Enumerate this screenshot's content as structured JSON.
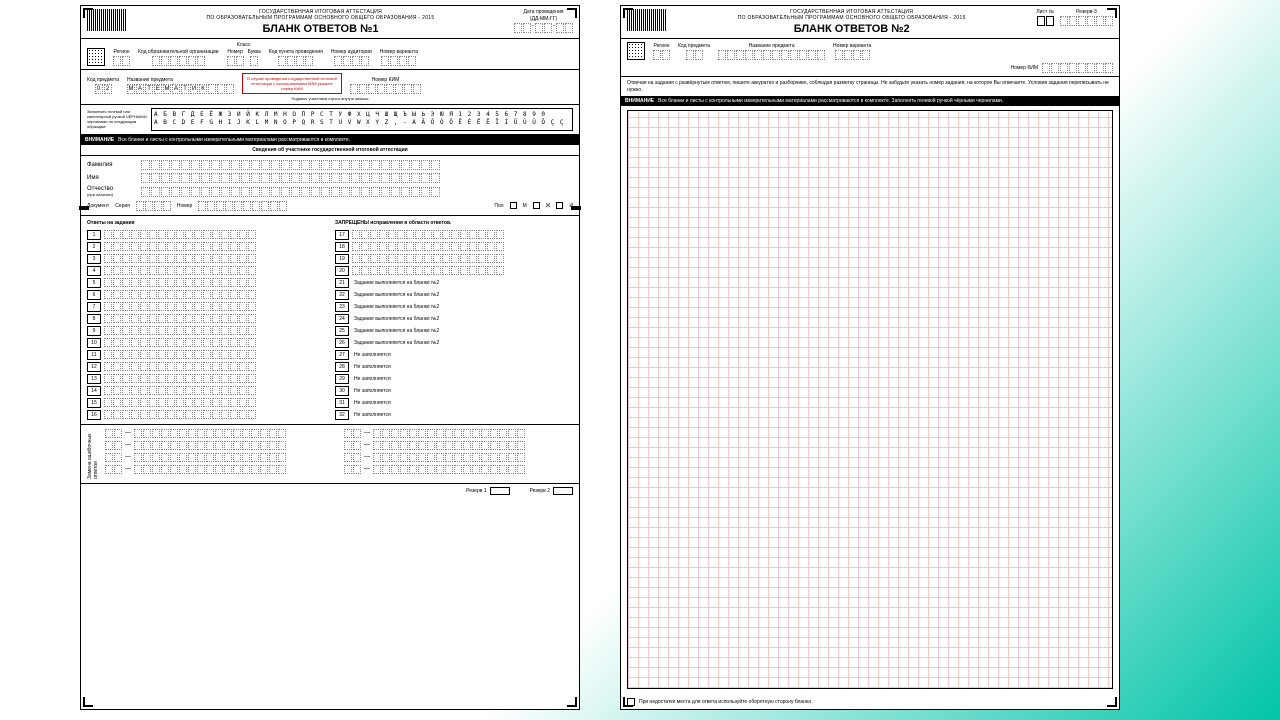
{
  "background": {
    "gradient_from": "#ffffff",
    "gradient_to": "#00c4a7"
  },
  "form1": {
    "header_line1": "ГОСУДАРСТВЕННАЯ ИТОГОВАЯ АТТЕСТАЦИЯ",
    "header_line2": "ПО ОБРАЗОВАТЕЛЬНЫМ ПРОГРАММАМ ОСНОВНОГО ОБЩЕГО ОБРАЗОВАНИЯ - 2015",
    "title": "БЛАНК ОТВЕТОВ №1",
    "date_label": "Дата проведения",
    "date_hint": "(ДД-ММ-ГГ)",
    "row2": {
      "region": "Регион",
      "org_code": "Код образовательной организации",
      "class": "Класс",
      "class_num": "Номер",
      "class_let": "Буква",
      "point_code": "Код пункта проведения",
      "aud": "Номер аудитории",
      "variant": "Номер варианта"
    },
    "row3": {
      "subj_code_label": "Код предмета",
      "subj_code": [
        "0",
        "2"
      ],
      "subj_name_label": "Название предмета",
      "subj_name": [
        "М",
        "А",
        "Т",
        "Е",
        "М",
        "А",
        "Т",
        "И",
        "К"
      ],
      "red_note": "В случае проведения государственной итоговой аттестации с использованием КИМ укажите номер КИМ",
      "sign_label": "Подпись участника строго внутри окошка",
      "kim_label": "Номер КИМ"
    },
    "alpha_label1": "Заполнять гелевой или капиллярной ручкой ЧЁРНЫМИ чернилами по следующим образцам:",
    "alpha_row1": "А Б В Г Д Е Ё Ж З И Й К Л М Н О П Р С Т У Ф Х Ц Ч Ш Щ Ъ Ы Ь Э Ю Я 1 2 3 4 5 6 7 8 9 0",
    "alpha_row2": "A B C D E F G H I J K L M N O P Q R S T U V W X Y Z , - А Ā Ö Ó Ő Ē É Ё Ĕ Ī Í Ū Ú Ü Ő Ç Ҫ",
    "warn_label": "ВНИМАНИЕ",
    "warn_text": "Все бланки и листы с контрольными измерительными материалами рассматриваются в комплекте.",
    "participant_title": "Сведения об участнике государственной итоговой аттестации",
    "name_labels": {
      "surname": "Фамилия",
      "name": "Имя",
      "patronymic": "Отчество",
      "patronymic_hint": "(при наличии)",
      "document": "Документ",
      "series": "Серия",
      "number": "Номер",
      "pol": "Пол",
      "m": "М",
      "f": "Ж",
      "i": "И"
    },
    "answers_label": "Ответы на задания",
    "forbidden_label": "ЗАПРЕЩЕНЫ исправления в области ответов.",
    "answer_boxes_per_row": 17,
    "left_rows": [
      1,
      2,
      3,
      4,
      5,
      6,
      7,
      8,
      9,
      10,
      11,
      12,
      13,
      14,
      15,
      16
    ],
    "right_rows": [
      {
        "n": 17,
        "note": ""
      },
      {
        "n": 18,
        "note": ""
      },
      {
        "n": 19,
        "note": ""
      },
      {
        "n": 20,
        "note": ""
      },
      {
        "n": 21,
        "note": "Задание выполняется на бланке №2"
      },
      {
        "n": 22,
        "note": "Задание выполняется на бланке №2"
      },
      {
        "n": 23,
        "note": "Задание выполняется на бланке №2"
      },
      {
        "n": 24,
        "note": "Задание выполняется на бланке №2"
      },
      {
        "n": 25,
        "note": "Задание выполняется на бланке №2"
      },
      {
        "n": 26,
        "note": "Задание выполняется на бланке №2"
      },
      {
        "n": 27,
        "note": "Не заполняется"
      },
      {
        "n": 28,
        "note": "Не заполняется"
      },
      {
        "n": 29,
        "note": "Не заполняется"
      },
      {
        "n": 30,
        "note": "Не заполняется"
      },
      {
        "n": 31,
        "note": "Не заполняется"
      },
      {
        "n": 32,
        "note": "Не заполняется"
      }
    ],
    "corrections_label": "Замена ошибочных ответов",
    "reserve1": "Резерв 1",
    "reserve2": "Резерв 2"
  },
  "form2": {
    "header_line1": "ГОСУДАРСТВЕННАЯ ИТОГОВАЯ АТТЕСТАЦИЯ",
    "header_line2": "ПО ОБРАЗОВАТЕЛЬНЫМ ПРОГРАММАМ ОСНОВНОГО ОБЩЕГО ОБРАЗОВАНИЯ - 2015",
    "title": "БЛАНК ОТВЕТОВ №2",
    "sheet_label": "Лист №",
    "reserve3": "Резерв-3",
    "row2": {
      "region": "Регион",
      "subj_code": "Код предмета",
      "subj_name": "Название предмета",
      "variant": "Номер варианта"
    },
    "kim_label": "Номер КИМ",
    "instructions": "Отвечая на задания с развёрнутым ответом, пишите аккуратно и разборчиво, соблюдая разметку страницы. Не забудьте указать номер задания, на которое Вы отвечаете. Условия задания переписывать не нужно.",
    "warn_label": "ВНИМАНИЕ",
    "warn_text": "Все бланки и листы с контрольными измерительными материалами рассматриваются в комплекте. Заполнять гелевой ручкой чёрными чернилами.",
    "footer": "При недостатке места для ответа используйте оборотную сторону бланка"
  },
  "colors": {
    "black": "#000000",
    "grid_pink": "#f5c6c6",
    "red": "#cc0000",
    "teal": "#00c4a7"
  }
}
